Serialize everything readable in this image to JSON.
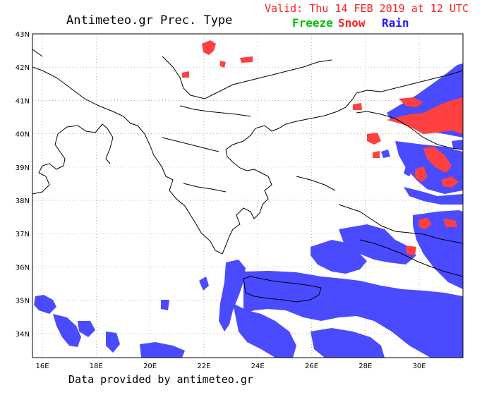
{
  "title": "Antimeteo.gr Prec. Type",
  "valid": "Valid: Thu 14 FEB 2019 at 12 UTC",
  "legend": {
    "freeze": "Freeze",
    "snow": "Snow",
    "rain": "Rain",
    "colors": {
      "freeze": "#00c000",
      "snow": "#ff3030",
      "rain": "#4a4aff"
    }
  },
  "credit": "Data provided by antimeteo.gr",
  "lat_labels": [
    "43N",
    "42N",
    "41N",
    "40N",
    "39N",
    "38N",
    "37N",
    "36N",
    "35N",
    "34N"
  ],
  "lon_labels": [
    "16E",
    "18E",
    "20E",
    "22E",
    "24E",
    "26E",
    "28E",
    "30E"
  ]
}
